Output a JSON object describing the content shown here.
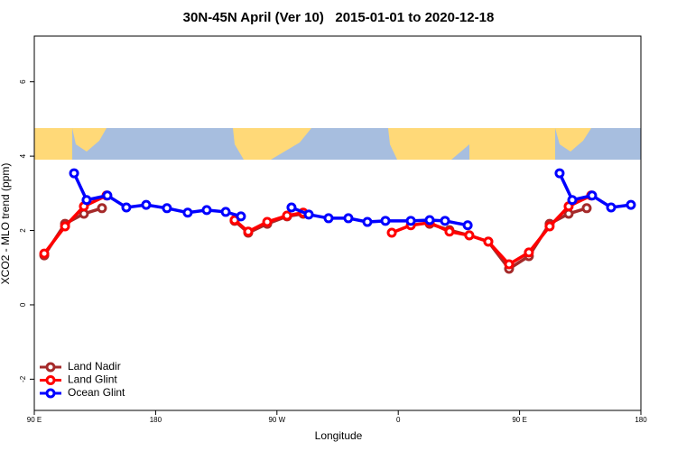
{
  "chart_data": {
    "type": "line",
    "title": "30N-45N April (Ver 10)   2015-01-01 to 2020-12-18",
    "x_label": "Longitude",
    "y_label": "XCO2 - MLO trend (ppm)",
    "xlim": [
      90,
      540
    ],
    "ylim": [
      -2.84,
      7.23
    ],
    "xticks": [
      {
        "value": 90,
        "label": "90 E"
      },
      180,
      {
        "value": 270,
        "label": "90 W"
      },
      {
        "value": 360,
        "label": "0"
      },
      {
        "value": 450,
        "label": "90 E"
      },
      {
        "value": 540,
        "label": "180"
      }
    ],
    "yticks": [
      -2,
      0,
      2,
      4,
      6
    ],
    "legend": "bottom-left",
    "series": [
      {
        "name": "Land Nadir",
        "color": "#a52a2a",
        "x": [
          97.4,
          112.8,
          126.8,
          140.2,
          null,
          238.6,
          248.7,
          262.8,
          277.5,
          289.5,
          null,
          383.3,
          398.0,
          412.7,
          426.8,
          442.2,
          456.9,
          472.3,
          486.4,
          499.8
        ],
        "values": [
          1.33,
          2.18,
          2.45,
          2.6,
          null,
          2.26,
          1.94,
          2.18,
          2.38,
          2.45,
          null,
          2.18,
          2.01,
          1.87,
          1.7,
          0.97,
          1.31,
          2.18,
          2.45,
          2.6
        ]
      },
      {
        "name": "Land Glint",
        "color": "#ff0000",
        "x": [
          97.4,
          112.8,
          126.8,
          143.6,
          null,
          238.6,
          248.7,
          262.8,
          277.5,
          289.5,
          null,
          355.2,
          369.3,
          383.3,
          398.0,
          412.7,
          426.8,
          442.2,
          456.9,
          472.3,
          486.4,
          503.1
        ],
        "values": [
          1.38,
          2.11,
          2.65,
          2.94,
          null,
          2.28,
          1.97,
          2.23,
          2.4,
          2.48,
          null,
          1.94,
          2.14,
          2.21,
          1.97,
          1.87,
          1.7,
          1.09,
          1.41,
          2.11,
          2.65,
          2.94
        ]
      },
      {
        "name": "Ocean Glint",
        "color": "#0000ff",
        "x": [
          119.5,
          128.8,
          144.2,
          158.3,
          173.0,
          188.4,
          203.8,
          217.9,
          232.0,
          243.3,
          null,
          280.8,
          293.6,
          308.3,
          323.0,
          337.1,
          350.5,
          369.3,
          383.3,
          394.7,
          411.5,
          null,
          479.7,
          489.1,
          503.8,
          517.9,
          532.6
        ],
        "values": [
          3.54,
          2.82,
          2.94,
          2.62,
          2.69,
          2.6,
          2.48,
          2.55,
          2.5,
          2.38,
          null,
          2.62,
          2.43,
          2.33,
          2.33,
          2.23,
          2.26,
          2.26,
          2.28,
          2.26,
          2.14,
          null,
          3.54,
          2.82,
          2.94,
          2.62,
          2.69
        ]
      }
    ]
  }
}
